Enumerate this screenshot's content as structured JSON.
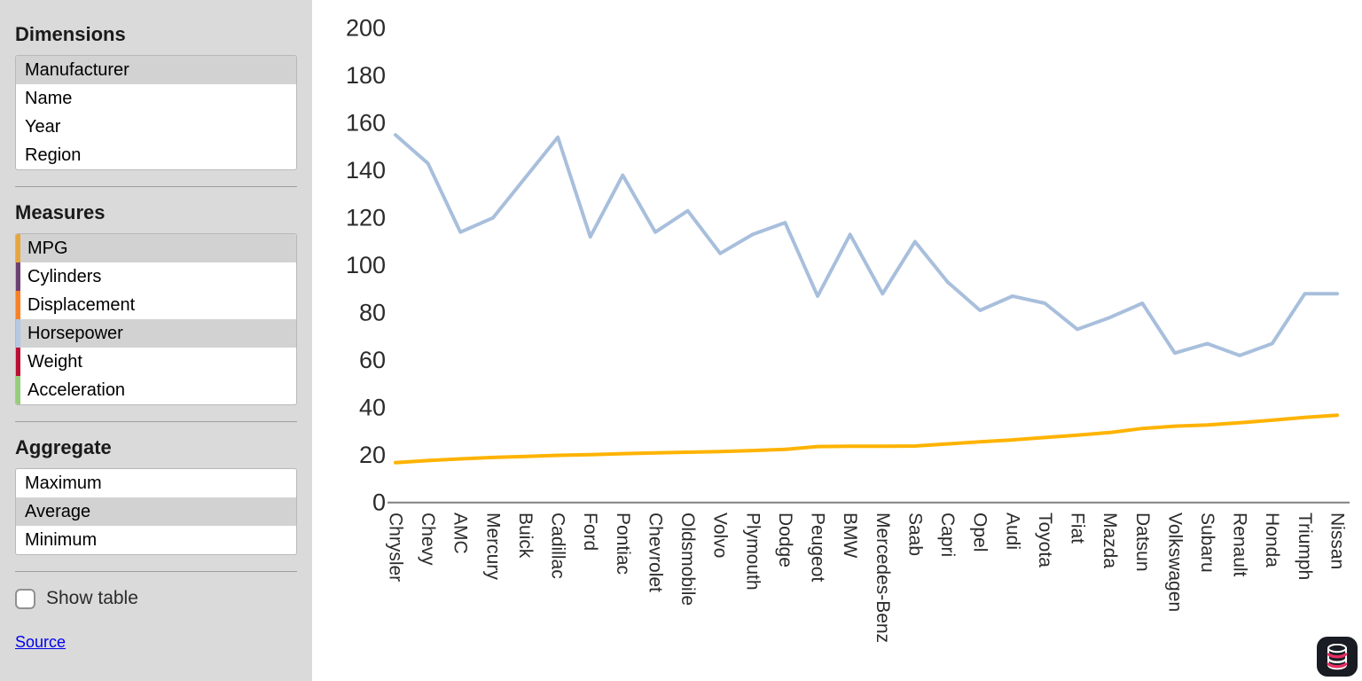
{
  "sidebar": {
    "dimensions": {
      "title": "Dimensions",
      "items": [
        {
          "label": "Manufacturer",
          "selected": true
        },
        {
          "label": "Name",
          "selected": false
        },
        {
          "label": "Year",
          "selected": false
        },
        {
          "label": "Region",
          "selected": false
        }
      ]
    },
    "measures": {
      "title": "Measures",
      "items": [
        {
          "label": "MPG",
          "color": "#e7a63c",
          "selected": true
        },
        {
          "label": "Cylinders",
          "color": "#6e4173",
          "selected": false
        },
        {
          "label": "Displacement",
          "color": "#fa8026",
          "selected": false
        },
        {
          "label": "Horsepower",
          "color": "#b3c8e2",
          "selected": true
        },
        {
          "label": "Weight",
          "color": "#bb0e32",
          "selected": false
        },
        {
          "label": "Acceleration",
          "color": "#95cd79",
          "selected": false
        }
      ]
    },
    "aggregate": {
      "title": "Aggregate",
      "items": [
        {
          "label": "Maximum",
          "selected": false
        },
        {
          "label": "Average",
          "selected": true
        },
        {
          "label": "Minimum",
          "selected": false
        }
      ]
    },
    "show_table_label": "Show table",
    "show_table_checked": false,
    "source_label": "Source"
  },
  "icons": {
    "fab": "database-icon"
  },
  "colors": {
    "sidebar_bg": "#dadada",
    "selected_row": "#d2d2d2",
    "axis": "#808080",
    "tick_text": "#2b2b2b",
    "link": "#0000ee",
    "fab_bg": "#191c23",
    "fab_accent": "#e62e63"
  },
  "chart_data": {
    "type": "line",
    "title": "",
    "xlabel": "",
    "ylabel": "",
    "ylim": [
      0,
      200
    ],
    "ytick_step": 20,
    "grid": false,
    "legend_position": "none",
    "x_label_rotation": 90,
    "categories": [
      "Chrysler",
      "Chevy",
      "AMC",
      "Mercury",
      "Buick",
      "Cadillac",
      "Ford",
      "Pontiac",
      "Chevrolet",
      "Oldsmobile",
      "Volvo",
      "Plymouth",
      "Dodge",
      "Peugeot",
      "BMW",
      "Mercedes-Benz",
      "Saab",
      "Capri",
      "Opel",
      "Audi",
      "Toyota",
      "Fiat",
      "Mazda",
      "Datsun",
      "Volkswagen",
      "Subaru",
      "Renault",
      "Honda",
      "Triumph",
      "Nissan"
    ],
    "series": [
      {
        "name": "Horsepower",
        "color": "#a8bfdc",
        "values": [
          155,
          143,
          114,
          120,
          137,
          154,
          112,
          138,
          114,
          123,
          105,
          113,
          118,
          87,
          113,
          88,
          110,
          93,
          81,
          87,
          84,
          73,
          78,
          84,
          63,
          67,
          62,
          67,
          88,
          88
        ]
      },
      {
        "name": "MPG",
        "color": "#ffb300",
        "values": [
          16.8,
          17.7,
          18.4,
          19.0,
          19.4,
          19.9,
          20.2,
          20.6,
          20.9,
          21.2,
          21.5,
          21.9,
          22.4,
          23.6,
          23.7,
          23.7,
          23.8,
          24.7,
          25.6,
          26.4,
          27.4,
          28.4,
          29.5,
          31.2,
          32.2,
          32.7,
          33.6,
          34.7,
          35.9,
          36.8
        ]
      }
    ]
  }
}
